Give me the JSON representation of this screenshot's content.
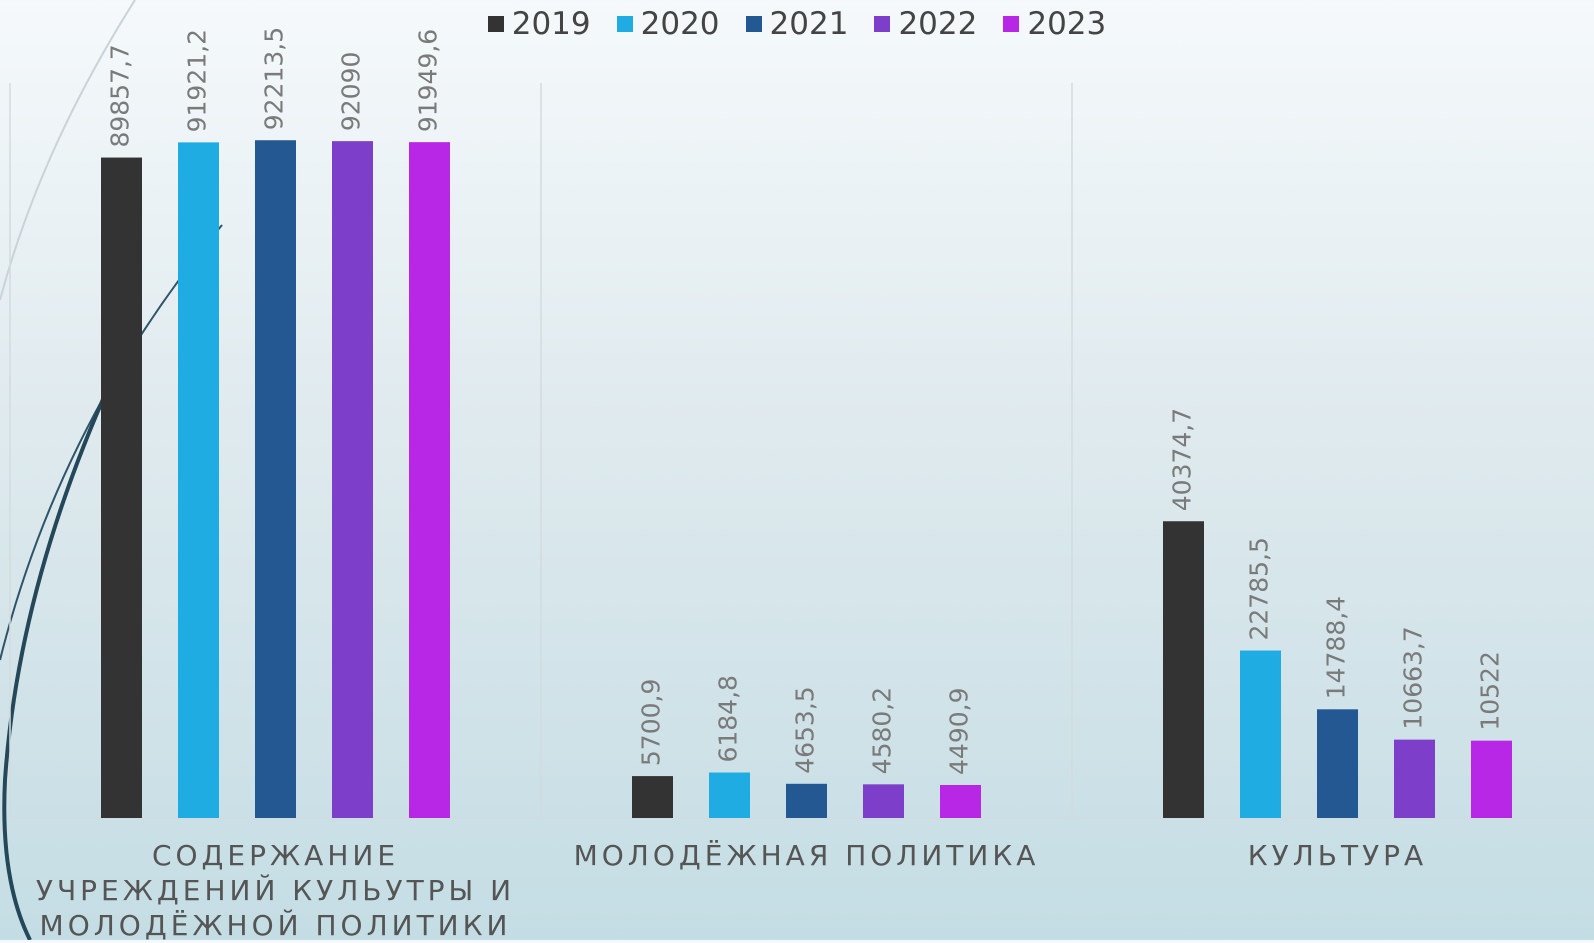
{
  "chart_data": {
    "type": "bar",
    "categories": [
      "СОДЕРЖАНИЕ УЧРЕЖДЕНИЙ КУЛЬУТРЫ И МОЛОДЁЖНОЙ ПОЛИТИКИ",
      "МОЛОДЁЖНАЯ ПОЛИТИКА",
      "КУЛЬТУРА"
    ],
    "series": [
      {
        "name": "2019",
        "color": "#333333",
        "values": [
          89857.7,
          5700.9,
          40374.7
        ],
        "value_labels": [
          "89857,7",
          "5700,9",
          "40374,7"
        ]
      },
      {
        "name": "2020",
        "color": "#1eace3",
        "values": [
          91921.2,
          6184.8,
          22785.5
        ],
        "value_labels": [
          "91921,2",
          "6184,8",
          "22785,5"
        ]
      },
      {
        "name": "2021",
        "color": "#245892",
        "values": [
          92213.5,
          4653.5,
          14788.4
        ],
        "value_labels": [
          "92213,5",
          "4653,5",
          "14788,4"
        ]
      },
      {
        "name": "2022",
        "color": "#7d3fca",
        "values": [
          92090,
          4580.2,
          10663.7
        ],
        "value_labels": [
          "92090",
          "4580,2",
          "10663,7"
        ]
      },
      {
        "name": "2023",
        "color": "#b826e6",
        "values": [
          91949.6,
          4490.9,
          10522
        ],
        "value_labels": [
          "91949,6",
          "4490,9",
          "10522"
        ]
      }
    ],
    "ylim": [
      0,
      100000
    ],
    "legend": "top"
  }
}
